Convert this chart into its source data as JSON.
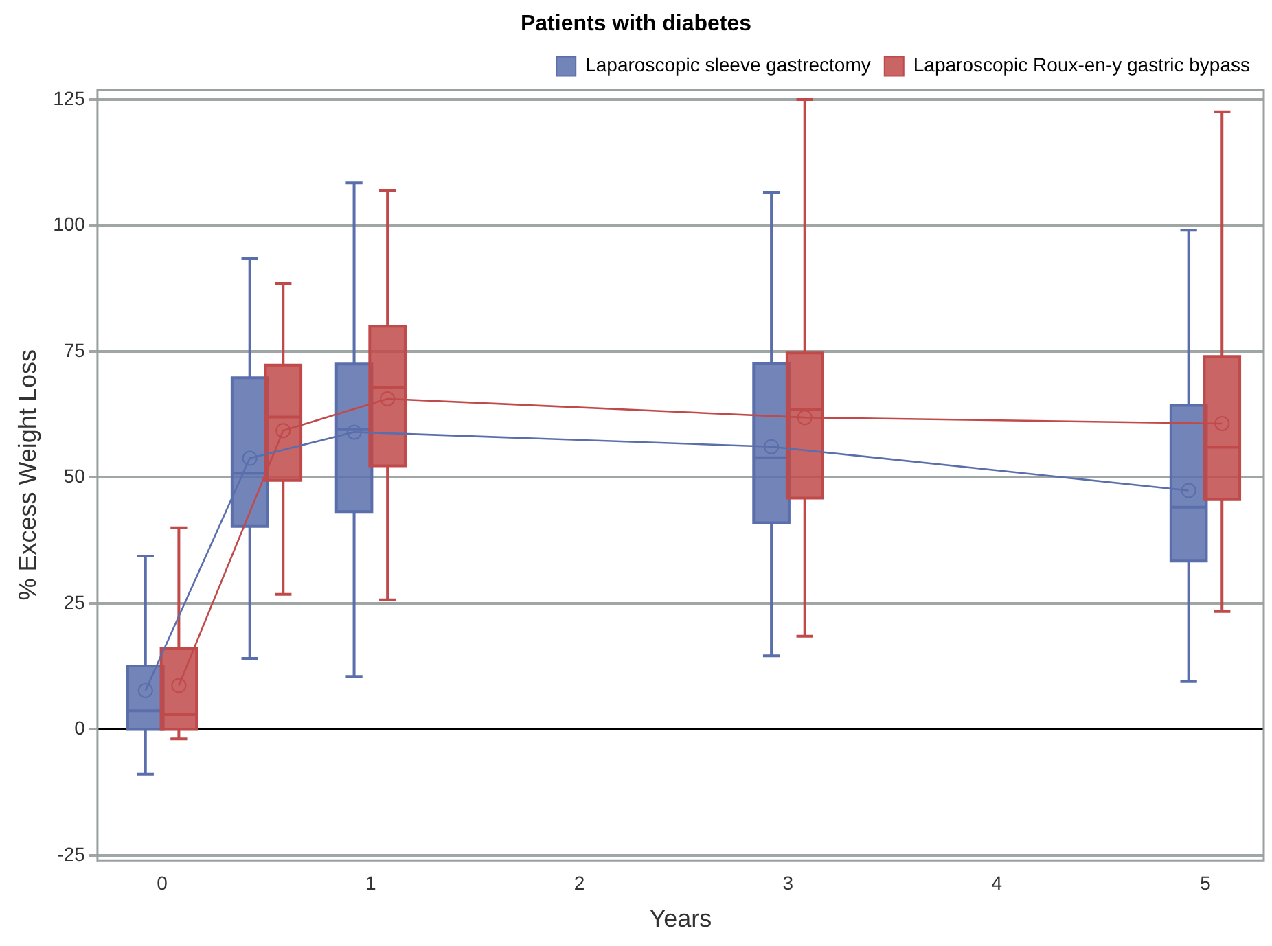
{
  "chart_data": {
    "type": "box",
    "title": "Patients with diabetes",
    "xlabel": "Years",
    "ylabel": "% Excess Weight Loss",
    "xlim": [
      -0.31,
      5.28
    ],
    "xticks": [
      0,
      1,
      2,
      3,
      4,
      5
    ],
    "ylim": [
      -26,
      127
    ],
    "yticks": [
      -25,
      0,
      25,
      50,
      75,
      100,
      125
    ],
    "grid": "y",
    "legend": "top right",
    "ref_lines": [
      {
        "axis": "y",
        "value": 0,
        "color": "#000000"
      }
    ],
    "series": [
      {
        "name": "Laparoscopic sleeve gastrectomy",
        "color": "#5a6eab",
        "x": [
          -0.08,
          0.42,
          0.92,
          2.92,
          4.92
        ],
        "boxes": [
          {
            "low": -8.9,
            "q1": 0,
            "median": 3.7,
            "q3": 12.6,
            "high": 34.4,
            "mean": 7.7
          },
          {
            "low": 14.1,
            "q1": 40.3,
            "median": 50.8,
            "q3": 69.8,
            "high": 93.4,
            "mean": 53.8
          },
          {
            "low": 10.5,
            "q1": 43.2,
            "median": 59.5,
            "q3": 72.5,
            "high": 108.5,
            "mean": 59
          },
          {
            "low": 14.6,
            "q1": 41,
            "median": 53.9,
            "q3": 72.7,
            "high": 106.6,
            "mean": 56.1
          },
          {
            "low": 9.5,
            "q1": 33.4,
            "median": 44.1,
            "q3": 64.3,
            "high": 99.1,
            "mean": 47.4
          }
        ]
      },
      {
        "name": "Laparoscopic Roux-en-y gastric bypass",
        "color": "#c04a4a",
        "x": [
          0.08,
          0.58,
          1.08,
          3.08,
          5.08
        ],
        "boxes": [
          {
            "low": -1.9,
            "q1": 0,
            "median": 2.9,
            "q3": 16,
            "high": 40,
            "mean": 8.7
          },
          {
            "low": 26.8,
            "q1": 49.4,
            "median": 62,
            "q3": 72.3,
            "high": 88.5,
            "mean": 59.3
          },
          {
            "low": 25.7,
            "q1": 52.3,
            "median": 67.9,
            "q3": 80,
            "high": 107,
            "mean": 65.6
          },
          {
            "low": 18.5,
            "q1": 45.9,
            "median": 63.5,
            "q3": 74.7,
            "high": 125,
            "mean": 61.9
          },
          {
            "low": 23.4,
            "q1": 45.6,
            "median": 56,
            "q3": 74,
            "high": 122.6,
            "mean": 60.7
          }
        ]
      },
      {
        "type": "line",
        "color": "#5a6eab",
        "x": [
          -0.08,
          0.42,
          0.92,
          2.92,
          4.92
        ],
        "values": [
          7.7,
          53.8,
          59,
          56.1,
          47.4
        ]
      },
      {
        "type": "line",
        "color": "#c04a4a",
        "x": [
          0.08,
          0.58,
          1.08,
          3.08,
          5.08
        ],
        "values": [
          8.7,
          59.3,
          65.6,
          61.9,
          60.7
        ]
      }
    ]
  }
}
